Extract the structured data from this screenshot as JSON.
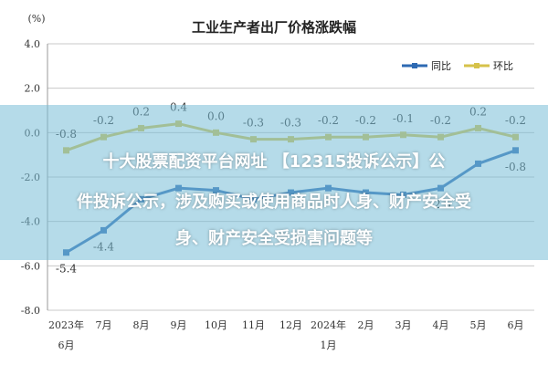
{
  "chart_data": {
    "type": "line",
    "title": "工业生产者出厂价格涨跌幅",
    "unit_label": "(%)",
    "ylim": [
      -8.0,
      4.0
    ],
    "yticks": [
      "4.0",
      "2.0",
      "0.0",
      "-2.0",
      "-4.0",
      "-6.0",
      "-8.0"
    ],
    "categories": [
      {
        "line1": "2023年",
        "line2": "6月"
      },
      {
        "line1": "7月",
        "line2": ""
      },
      {
        "line1": "8月",
        "line2": ""
      },
      {
        "line1": "9月",
        "line2": ""
      },
      {
        "line1": "10月",
        "line2": ""
      },
      {
        "line1": "11月",
        "line2": ""
      },
      {
        "line1": "12月",
        "line2": ""
      },
      {
        "line1": "2024年",
        "line2": "1月"
      },
      {
        "line1": "2月",
        "line2": ""
      },
      {
        "line1": "3月",
        "line2": ""
      },
      {
        "line1": "4月",
        "line2": ""
      },
      {
        "line1": "5月",
        "line2": ""
      },
      {
        "line1": "6月",
        "line2": ""
      }
    ],
    "series": [
      {
        "name": "同比",
        "color": "#2e6ab3",
        "values": [
          -5.4,
          -4.4,
          -3.0,
          -2.5,
          -2.6,
          -3.0,
          -2.7,
          -2.5,
          -2.7,
          -2.8,
          -2.5,
          -1.4,
          -0.8
        ],
        "labels": [
          "-5.4",
          "-4.4",
          "",
          "",
          "",
          "",
          "",
          "",
          "",
          "",
          "-2.5",
          "",
          "-0.8"
        ]
      },
      {
        "name": "环比",
        "color": "#d6c24a",
        "values": [
          -0.8,
          -0.2,
          0.2,
          0.4,
          0.0,
          -0.3,
          -0.3,
          -0.2,
          -0.2,
          -0.1,
          -0.2,
          0.2,
          -0.2
        ],
        "labels": [
          "-0.8",
          "-0.2",
          "0.2",
          "0.4",
          "0.0",
          "-0.3",
          "-0.3",
          "-0.2",
          "-0.2",
          "-0.1",
          "-0.2",
          "0.2",
          "-0.2"
        ]
      }
    ],
    "grid": true,
    "legend_position": "top-right"
  },
  "overlay": {
    "line1": "十大股票配资平台网址 【12315投诉公示】公",
    "line2": "件投诉公示，涉及购买或使用商品时人身、财产安全受",
    "line3": "身、财产安全受损害问题等"
  }
}
